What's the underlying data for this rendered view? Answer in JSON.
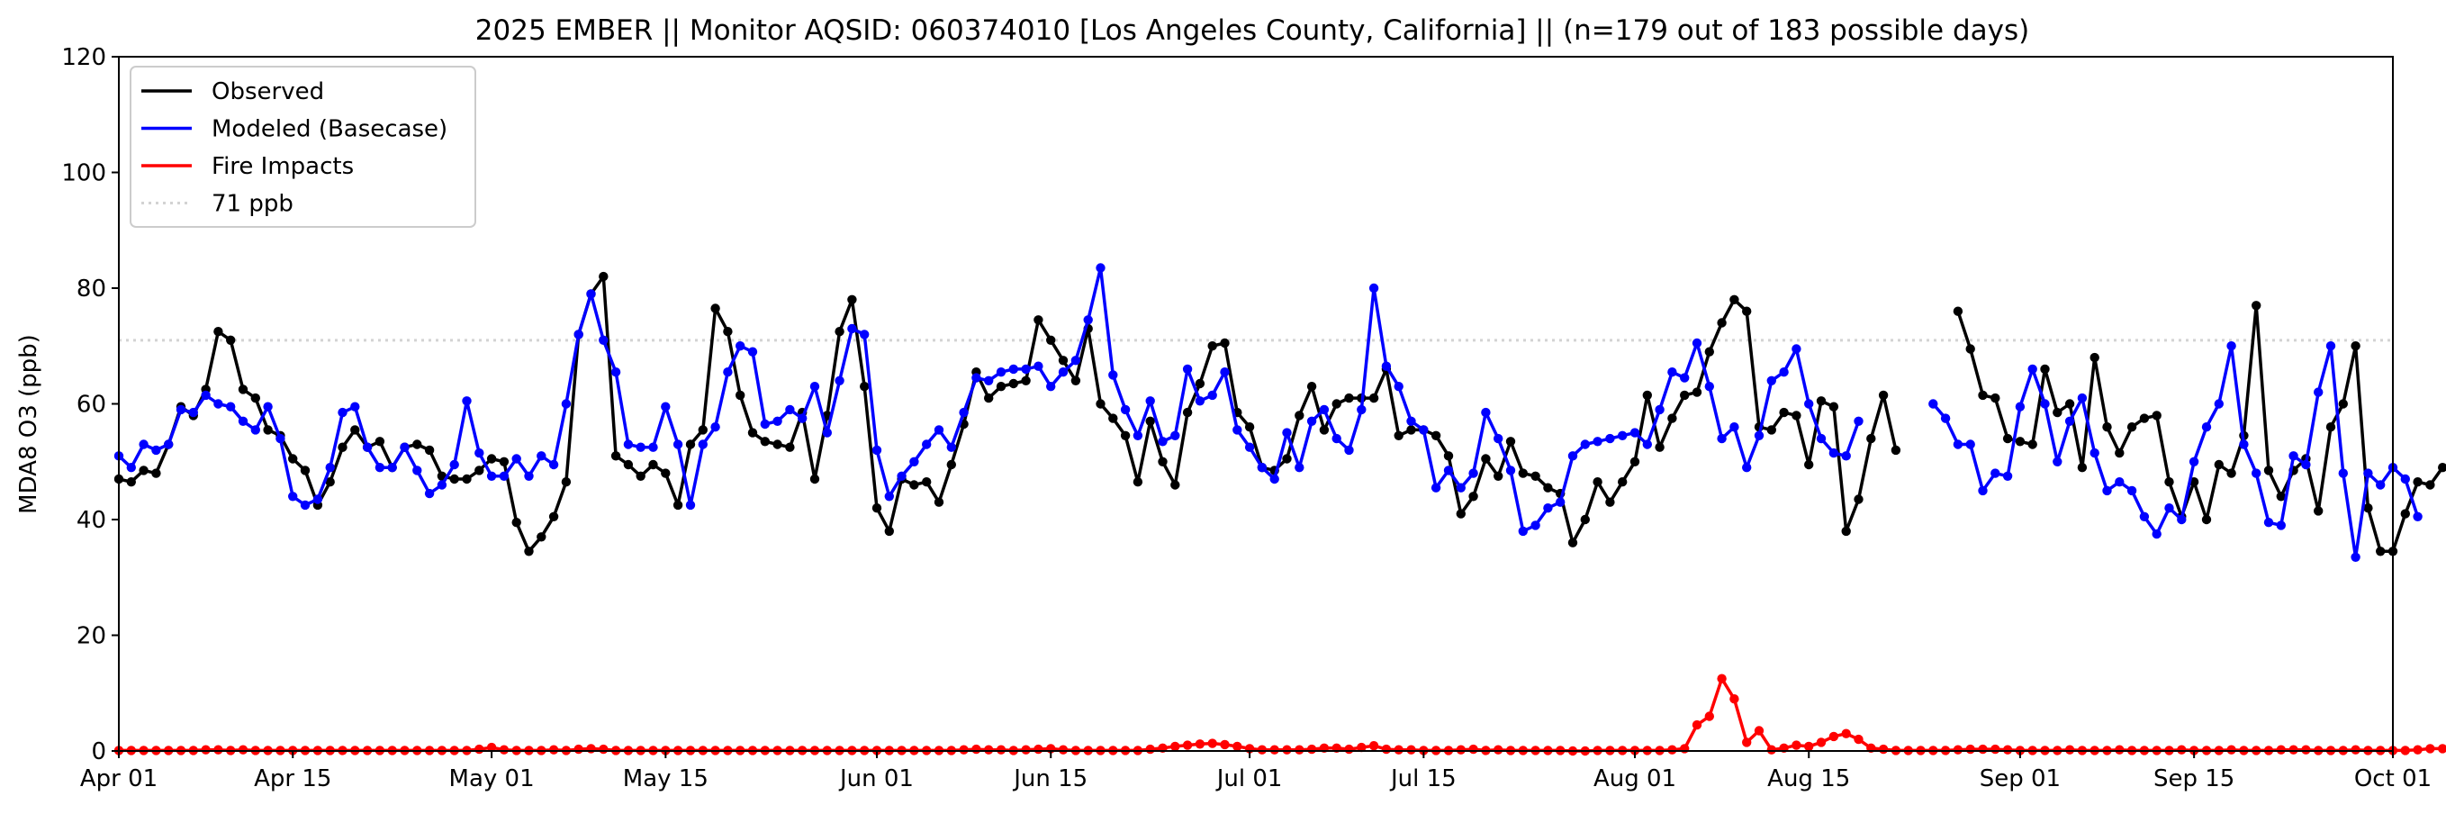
{
  "chart_data": {
    "type": "line",
    "title": "2025 EMBER || Monitor AQSID: 060374010 [Los Angeles County, California] || (n=179 out of 183 possible days)",
    "xlabel": "",
    "ylabel": "MDA8 O3 (ppb)",
    "xlim": [
      "2025-04-01",
      "2025-10-01"
    ],
    "ylim": [
      0,
      120
    ],
    "x_ticks": [
      {
        "date": "2025-04-01",
        "label": "Apr 01"
      },
      {
        "date": "2025-04-15",
        "label": "Apr 15"
      },
      {
        "date": "2025-05-01",
        "label": "May 01"
      },
      {
        "date": "2025-05-15",
        "label": "May 15"
      },
      {
        "date": "2025-06-01",
        "label": "Jun 01"
      },
      {
        "date": "2025-06-15",
        "label": "Jun 15"
      },
      {
        "date": "2025-07-01",
        "label": "Jul 01"
      },
      {
        "date": "2025-07-15",
        "label": "Jul 15"
      },
      {
        "date": "2025-08-01",
        "label": "Aug 01"
      },
      {
        "date": "2025-08-15",
        "label": "Aug 15"
      },
      {
        "date": "2025-09-01",
        "label": "Sep 01"
      },
      {
        "date": "2025-09-15",
        "label": "Sep 15"
      },
      {
        "date": "2025-10-01",
        "label": "Oct 01"
      }
    ],
    "y_ticks": [
      0,
      20,
      40,
      60,
      80,
      100,
      120
    ],
    "grid": false,
    "legend_position": "top-left",
    "reference_line": {
      "name": "71 ppb",
      "value": 71,
      "color": "#d3d3d3",
      "style": "dotted"
    },
    "series": [
      {
        "name": "Observed",
        "color": "#000000",
        "start_date": "2025-04-01",
        "values": [
          47,
          46.5,
          48.5,
          48,
          53,
          59.5,
          58,
          62.5,
          72.5,
          71,
          62.5,
          61,
          55.5,
          54.5,
          50.5,
          48.5,
          42.5,
          46.5,
          52.5,
          55.5,
          52.5,
          53.5,
          49,
          52.5,
          53,
          52,
          47.5,
          47,
          47,
          48.5,
          50.5,
          50,
          39.5,
          34.5,
          37,
          40.5,
          46.5,
          72,
          79,
          82,
          51,
          49.5,
          47.5,
          49.5,
          48,
          42.5,
          53,
          55.5,
          76.5,
          72.5,
          61.5,
          55,
          53.5,
          53,
          52.5,
          58.5,
          47,
          58,
          72.5,
          78,
          63,
          42,
          38,
          47,
          46,
          46.5,
          43,
          49.5,
          56.5,
          65.5,
          61,
          63,
          63.5,
          64,
          74.5,
          71,
          67.5,
          64,
          73,
          60,
          57.5,
          54.5,
          46.5,
          57,
          50,
          46,
          58.5,
          63.5,
          70,
          70.5,
          58.5,
          56,
          49,
          48.5,
          50.5,
          58,
          63,
          55.5,
          60,
          61,
          61,
          61,
          66,
          54.5,
          55.5,
          55.5,
          54.5,
          51,
          41,
          44,
          50.5,
          47.5,
          53.5,
          48,
          47.5,
          45.5,
          44.5,
          36,
          40,
          46.5,
          43,
          46.5,
          50,
          61.5,
          52.5,
          57.5,
          61.5,
          62,
          69,
          74,
          78,
          76,
          56,
          55.5,
          58.5,
          58,
          49.5,
          60.5,
          59.5,
          38,
          43.5,
          54,
          61.5,
          52,
          null,
          null,
          null,
          null,
          76,
          69.5,
          61.5,
          61,
          54,
          53.5,
          53,
          66,
          58.5,
          60,
          49,
          68,
          56,
          51.5,
          56,
          57.5,
          58,
          46.5,
          40.5,
          46.5,
          40,
          49.5,
          48,
          54.5,
          77,
          48.5,
          44,
          48.5,
          50.5,
          41.5,
          56,
          60,
          70,
          42,
          34.5,
          34.5,
          41,
          46.5,
          46,
          49
        ]
      },
      {
        "name": "Modeled (Basecase)",
        "color": "#0000ff",
        "start_date": "2025-04-01",
        "values": [
          51,
          49,
          53,
          52,
          53,
          59,
          58.5,
          61.5,
          60,
          59.5,
          57,
          55.5,
          59.5,
          54,
          44,
          42.5,
          43.5,
          49,
          58.5,
          59.5,
          52.5,
          49,
          49,
          52.5,
          48.5,
          44.5,
          46,
          49.5,
          60.5,
          51.5,
          47.5,
          47.5,
          50.5,
          47.5,
          51,
          49.5,
          60,
          72,
          79,
          71,
          65.5,
          53,
          52.5,
          52.5,
          59.5,
          53,
          42.5,
          53,
          56,
          65.5,
          70,
          69,
          56.5,
          57,
          59,
          57.5,
          63,
          55,
          64,
          73,
          72,
          52,
          44,
          47.5,
          50,
          53,
          55.5,
          52.5,
          58.5,
          64.5,
          64,
          65.5,
          66,
          66,
          66.5,
          63,
          65.5,
          67.5,
          74.5,
          83.5,
          65,
          59,
          54.5,
          60.5,
          53.5,
          54.5,
          66,
          60.5,
          61.5,
          65.5,
          55.5,
          52.5,
          49,
          47,
          55,
          49,
          57,
          59,
          54,
          52,
          59,
          80,
          66.5,
          63,
          57,
          55.5,
          45.5,
          48.5,
          45.5,
          48,
          58.5,
          54,
          48.5,
          38,
          39,
          42,
          43,
          51,
          53,
          53.5,
          54,
          54.5,
          55,
          53,
          59,
          65.5,
          64.5,
          70.5,
          63,
          54,
          56,
          49,
          54.5,
          64,
          65.5,
          69.5,
          60,
          54,
          51.5,
          51,
          57,
          null,
          null,
          null,
          null,
          null,
          60,
          57.5,
          53,
          53,
          45,
          48,
          47.5,
          59.5,
          66,
          60,
          50,
          57,
          61,
          51.5,
          45,
          46.5,
          45,
          40.5,
          37.5,
          42,
          40,
          50,
          56,
          60,
          70,
          53,
          48,
          39.5,
          39,
          51,
          49.5,
          62,
          70,
          48,
          33.5,
          48,
          46,
          49,
          47,
          40.5
        ]
      },
      {
        "name": "Fire Impacts",
        "color": "#ff0000",
        "start_date": "2025-04-01",
        "values": [
          0.1,
          0.1,
          0.1,
          0.1,
          0.1,
          0.1,
          0.1,
          0.2,
          0.2,
          0.1,
          0.2,
          0.1,
          0.1,
          0.1,
          0.1,
          0.1,
          0.1,
          0.1,
          0.1,
          0.1,
          0.1,
          0.1,
          0.1,
          0.1,
          0.1,
          0.1,
          0.1,
          0.1,
          0.1,
          0.3,
          0.6,
          0.2,
          0.1,
          0.1,
          0.1,
          0.2,
          0.1,
          0.3,
          0.4,
          0.3,
          0.1,
          0.1,
          0.1,
          0.1,
          0.1,
          0.1,
          0.1,
          0.1,
          0.1,
          0.1,
          0.1,
          0.1,
          0.1,
          0.1,
          0.1,
          0.1,
          0.1,
          0.1,
          0.1,
          0.1,
          0.1,
          0.1,
          0.1,
          0.1,
          0.1,
          0.1,
          0.1,
          0.1,
          0.2,
          0.3,
          0.2,
          0.2,
          0.1,
          0.2,
          0.3,
          0.4,
          0.2,
          0.1,
          0.1,
          0.1,
          0.1,
          0.1,
          0.1,
          0.3,
          0.5,
          0.8,
          1,
          1.2,
          1.3,
          1.1,
          0.8,
          0.4,
          0.2,
          0.2,
          0.2,
          0.2,
          0.3,
          0.5,
          0.5,
          0.3,
          0.6,
          0.9,
          0.3,
          0.2,
          0.2,
          0.1,
          0.1,
          0.1,
          0.2,
          0.3,
          0.1,
          0.2,
          0.1,
          0.1,
          0.1,
          0.1,
          0.1,
          0,
          0,
          0.1,
          0.1,
          0.1,
          0.1,
          0.1,
          0.1,
          0.2,
          0.4,
          4.5,
          6,
          12.5,
          9,
          1.5,
          3.5,
          0.2,
          0.5,
          1,
          0.8,
          1.5,
          2.5,
          3,
          2,
          0.5,
          0.3,
          0.1,
          0.1,
          0.1,
          0.1,
          0.1,
          0.2,
          0.3,
          0.3,
          0.3,
          0.2,
          0.1,
          0.1,
          0.1,
          0.1,
          0.2,
          0.1,
          0.1,
          0.1,
          0.2,
          0.1,
          0.1,
          0.1,
          0.1,
          0.2,
          0.1,
          0.1,
          0.1,
          0.2,
          0.1,
          0.1,
          0.1,
          0.2,
          0.2,
          0.2,
          0.1,
          0.1,
          0.1,
          0.2,
          0.1,
          0.1,
          0.1,
          0.1,
          0.2,
          0.4,
          0.4,
          0.6,
          0.7
        ]
      }
    ]
  }
}
